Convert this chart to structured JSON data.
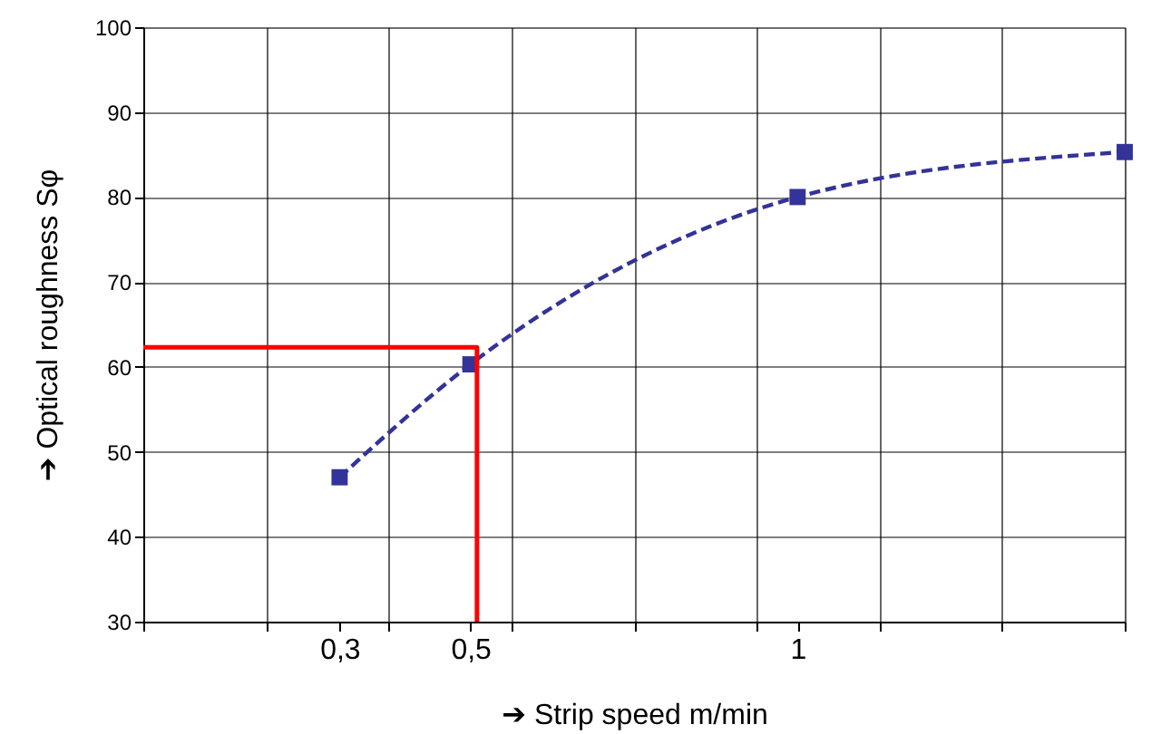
{
  "chart_data": {
    "type": "line",
    "xlabel": "➔  Strip    speed m/min",
    "ylabel": "➔      Optical roughness Sφ",
    "xlim": [
      0,
      1.5
    ],
    "xticks": [
      {
        "value": 0,
        "label": null
      },
      {
        "value": 0.1875,
        "label": null
      },
      {
        "value": 0.375,
        "label": null
      },
      {
        "value": 0.5625,
        "label": null
      },
      {
        "value": 0.75,
        "label": null
      },
      {
        "value": 0.9375,
        "label": null
      },
      {
        "value": 1.125,
        "label": null
      },
      {
        "value": 1.3125,
        "label": null
      },
      {
        "value": 1.5,
        "label": null
      },
      {
        "value": 0.3,
        "label": "0,3"
      },
      {
        "value": 0.5,
        "label": "0,5"
      },
      {
        "value": 1,
        "label": "1"
      }
    ],
    "ylim": [
      30,
      100
    ],
    "yticks": [
      30,
      40,
      50,
      60,
      70,
      80,
      90,
      100
    ],
    "grid": true,
    "series": [
      {
        "color": "#333399",
        "x": [
          0.3,
          0.5,
          1,
          1.5
        ],
        "values": [
          47,
          60.3,
          80,
          85.3
        ],
        "marker": "square",
        "line_style": "dashed"
      },
      {
        "color": "#ff0000",
        "x": [
          0,
          0.51,
          0.51
        ],
        "values": [
          62.3,
          62.3,
          30
        ],
        "marker": "none",
        "line_style": "solid"
      }
    ]
  }
}
